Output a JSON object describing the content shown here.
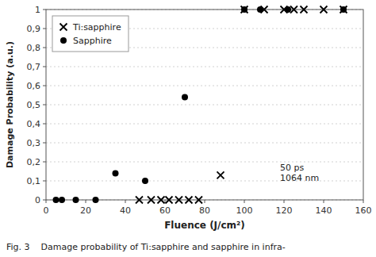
{
  "chart_data": {
    "type": "scatter",
    "x_label": "Fluence (J/cm²)",
    "y_label": "Damage Probability (a.u.)",
    "series": [
      {
        "name": "Ti:sapphire",
        "color": "#000000",
        "marker": "x",
        "x": [
          47,
          53,
          58,
          62,
          67,
          72,
          77,
          88,
          100,
          110,
          120,
          125,
          130,
          140,
          150
        ],
        "values": [
          0,
          0,
          0,
          0,
          0,
          0,
          0,
          0.13,
          1.0,
          1.0,
          1.0,
          1.0,
          1.0,
          1.0,
          1.0
        ]
      },
      {
        "name": "Sapphire",
        "color": "#000000",
        "marker": "circle",
        "x": [
          5,
          8,
          15,
          25,
          35,
          50,
          70,
          100,
          108,
          122,
          150
        ],
        "values": [
          0,
          0,
          0,
          0,
          0.14,
          0.1,
          0.54,
          1.0,
          1.0,
          1.0,
          1.0
        ]
      }
    ],
    "xlim": [
      0,
      160
    ],
    "ylim": [
      0,
      1
    ],
    "xticks": [
      0,
      20,
      40,
      60,
      80,
      100,
      120,
      140,
      160
    ],
    "yticks": [
      0,
      {
        "value": 0.1,
        "label": "0,1"
      },
      {
        "value": 0.2,
        "label": "0,2"
      },
      {
        "value": 0.3,
        "label": "0,3"
      },
      {
        "value": 0.4,
        "label": "0,4"
      },
      {
        "value": 0.5,
        "label": "0,5"
      },
      {
        "value": 0.6,
        "label": "0,6"
      },
      {
        "value": 0.7,
        "label": "0,7"
      },
      {
        "value": 0.8,
        "label": "0,8"
      },
      {
        "value": 0.9,
        "label": "0,9"
      },
      1
    ],
    "grid": true,
    "legend": "upper left",
    "annotations": [
      {
        "text": "50 ps\n1064 nm",
        "x": 118,
        "y": 0.145
      }
    ],
    "caption": "Fig. 3    Damage probability of Ti:sapphire and sapphire in infra-"
  }
}
